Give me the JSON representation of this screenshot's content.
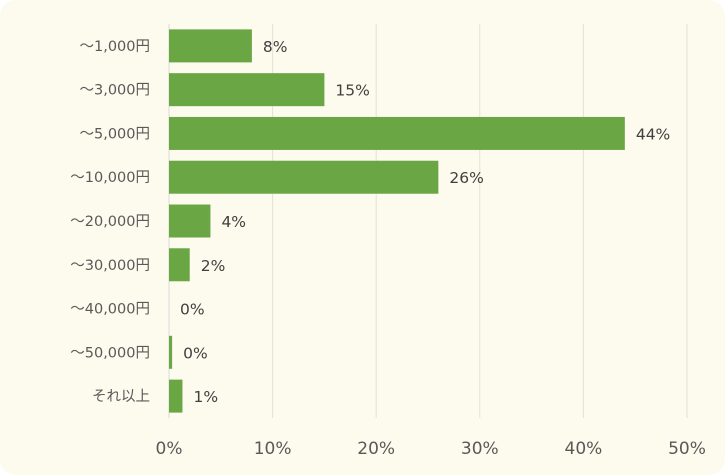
{
  "chart_data": {
    "type": "bar",
    "orientation": "horizontal",
    "title": "",
    "xlabel": "",
    "ylabel": "",
    "categories": [
      "～1,000円",
      "～3,000円",
      "～5,000円",
      "～10,000円",
      "～20,000円",
      "～30,000円",
      "～40,000円",
      "～50,000円",
      "それ以上"
    ],
    "values": [
      8,
      15,
      44,
      26,
      4,
      2,
      0,
      0.3,
      1.3
    ],
    "data_labels": [
      "8%",
      "15%",
      "44%",
      "26%",
      "4%",
      "2%",
      "0%",
      "0%",
      "1%"
    ],
    "xlim": [
      0,
      50
    ],
    "x_ticks": [
      0,
      10,
      20,
      30,
      40,
      50
    ],
    "x_tick_labels": [
      "0%",
      "10%",
      "20%",
      "30%",
      "40%",
      "50%"
    ],
    "grid": "vertical",
    "legend": "none",
    "bar_color": "#6aa744",
    "grid_color": "#e4e2d6",
    "background_color": "#fdfbee"
  }
}
